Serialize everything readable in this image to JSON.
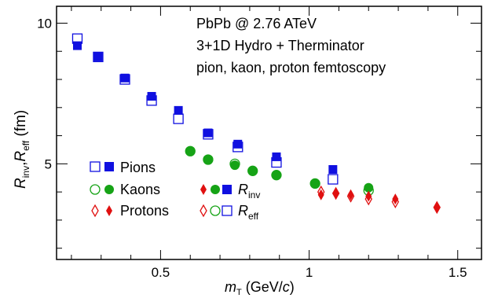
{
  "chart_data": {
    "type": "scatter",
    "annotations": [
      "PbPb @ 2.76 ATeV",
      "3+1D Hydro + Therminator",
      "pion, kaon, proton femtoscopy"
    ],
    "xlabel": {
      "main": "m",
      "sub": "T",
      "unit": " (GeV/",
      "unit_var": "c",
      "unit_end": ")"
    },
    "ylabel": {
      "r1": "R",
      "r1_sub": "inv",
      "sep": ",",
      "r2": "R",
      "r2_sub": "eff",
      "unit": " (fm)"
    },
    "xlim": [
      0.15,
      1.58
    ],
    "ylim": [
      1.6,
      10.6
    ],
    "x_ticks": [
      {
        "value": 0.5,
        "label": "0.5"
      },
      {
        "value": 1.0,
        "label": "1"
      },
      {
        "value": 1.5,
        "label": "1.5"
      }
    ],
    "y_ticks": [
      {
        "value": 5,
        "label": "5"
      },
      {
        "value": 10,
        "label": "10"
      }
    ],
    "legend": {
      "placement": "bottom-left",
      "species": [
        "Pions",
        "Kaons",
        "Protons"
      ],
      "rinv_label": {
        "main": "R",
        "sub": "inv"
      },
      "reff_label": {
        "main": "R",
        "sub": "eff"
      }
    },
    "series": [
      {
        "species": "pion",
        "kind": "Rinv",
        "marker": "filled-square",
        "color": "#1010e0",
        "x": [
          0.22,
          0.29,
          0.38,
          0.47,
          0.56,
          0.66,
          0.76,
          0.89,
          1.08
        ],
        "y": [
          9.2,
          8.8,
          8.05,
          7.4,
          6.9,
          6.1,
          5.7,
          5.25,
          4.8
        ]
      },
      {
        "species": "pion",
        "kind": "Reff",
        "marker": "open-square",
        "color": "#1010e0",
        "x": [
          0.22,
          0.29,
          0.38,
          0.47,
          0.56,
          0.66,
          0.76,
          0.89,
          1.08
        ],
        "y": [
          9.45,
          8.8,
          8.0,
          7.25,
          6.6,
          6.05,
          5.6,
          5.05,
          4.45
        ]
      },
      {
        "species": "kaon",
        "kind": "Rinv",
        "marker": "filled-circle",
        "color": "#16a316",
        "x": [
          0.6,
          0.66,
          0.75,
          0.81,
          0.89,
          1.02,
          1.2
        ],
        "y": [
          5.45,
          5.15,
          4.95,
          4.75,
          4.6,
          4.3,
          4.15
        ]
      },
      {
        "species": "kaon",
        "kind": "Reff",
        "marker": "open-circle",
        "color": "#16a316",
        "x": [
          0.6,
          0.66,
          0.75,
          0.81,
          0.89,
          1.02,
          1.2
        ],
        "y": [
          5.45,
          5.15,
          5.0,
          4.75,
          4.6,
          4.3,
          4.05
        ]
      },
      {
        "species": "proton",
        "kind": "Rinv",
        "marker": "filled-diamond",
        "color": "#e01010",
        "x": [
          1.04,
          1.09,
          1.14,
          1.2,
          1.29,
          1.43
        ],
        "y": [
          3.9,
          3.95,
          3.9,
          3.85,
          3.75,
          3.45
        ]
      },
      {
        "species": "proton",
        "kind": "Reff",
        "marker": "open-diamond",
        "color": "#e01010",
        "x": [
          1.04,
          1.09,
          1.14,
          1.2,
          1.29,
          1.43
        ],
        "y": [
          4.0,
          3.95,
          3.85,
          3.75,
          3.65,
          3.45
        ]
      }
    ]
  }
}
